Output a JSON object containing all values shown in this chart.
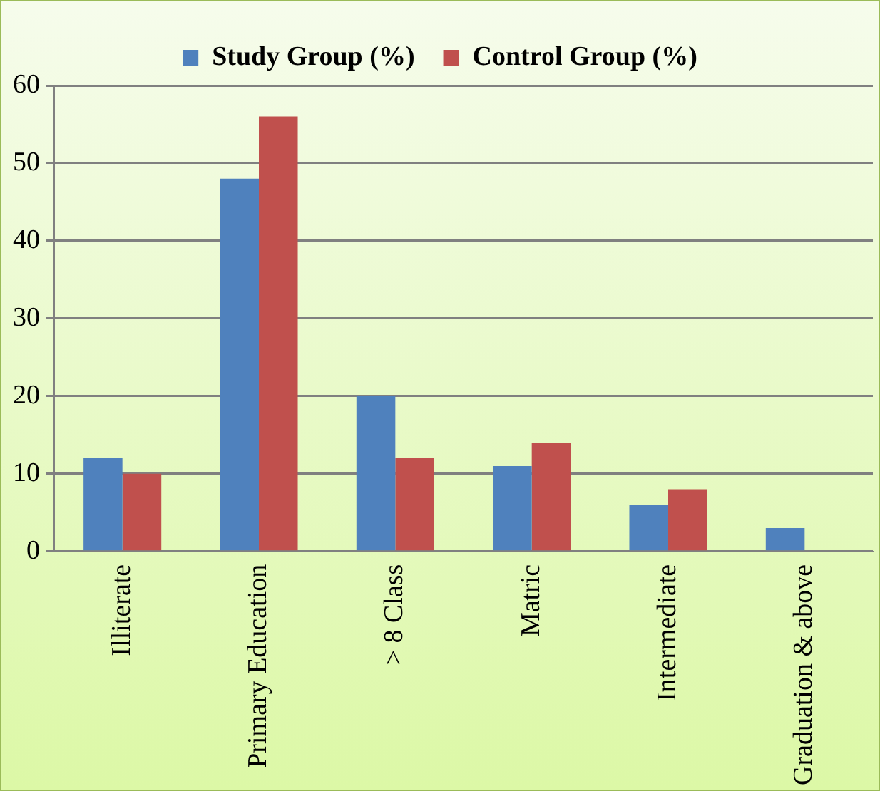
{
  "chart_data": {
    "type": "bar",
    "categories": [
      "Illiterate",
      "Primary Education",
      "> 8 Class",
      "Matric",
      "Intermediate",
      "Graduation & above"
    ],
    "series": [
      {
        "name": "Study Group (%)",
        "color": "#4f81bd",
        "values": [
          12,
          48,
          20,
          11,
          6,
          3
        ]
      },
      {
        "name": "Control Group (%)",
        "color": "#c0504d",
        "values": [
          10,
          56,
          12,
          14,
          8,
          0
        ]
      }
    ],
    "ylim": [
      0,
      60
    ],
    "yticks": [
      0,
      10,
      20,
      30,
      40,
      50,
      60
    ],
    "grid": "y",
    "legend": "top"
  }
}
